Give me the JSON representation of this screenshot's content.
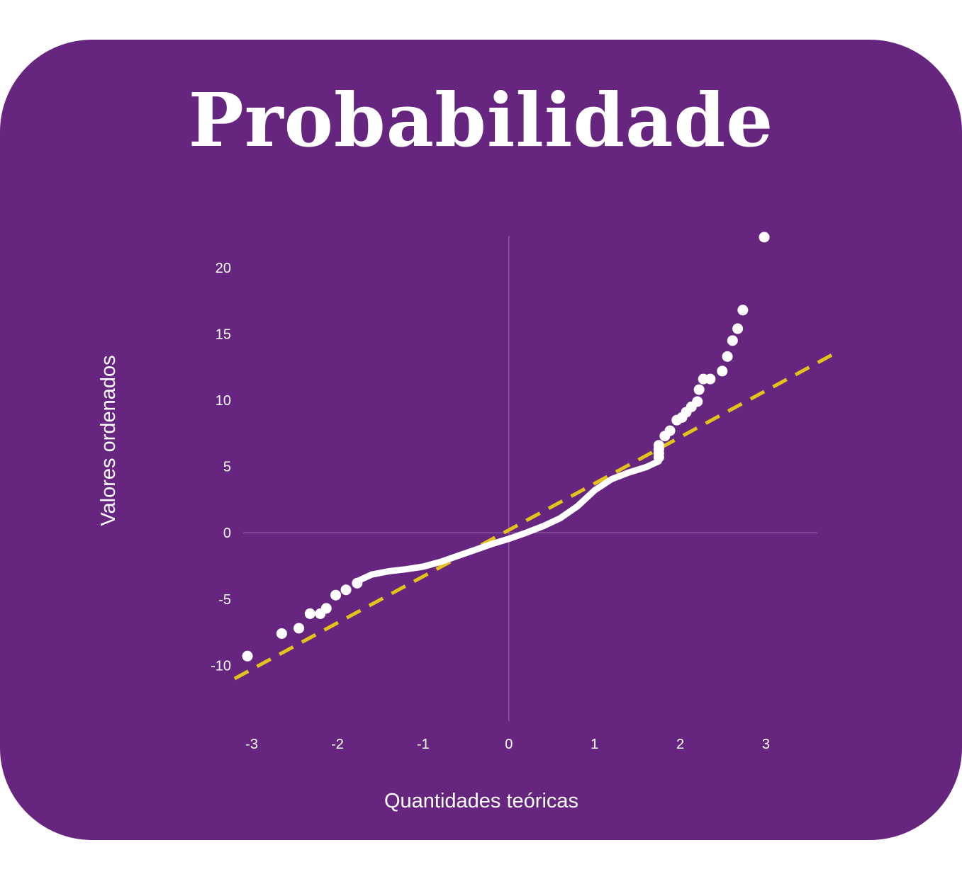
{
  "title": "Probabilidade",
  "colors": {
    "background": "#66267f",
    "points": "#ffffff",
    "reference_line": "#e3c21a",
    "zero_axes": "#8a57a0"
  },
  "chart_data": {
    "type": "scatter",
    "title": "Probabilidade",
    "xlabel": "Quantidades teóricas",
    "ylabel": "Valores ordenados",
    "xlim": [
      -3.1,
      3.6
    ],
    "ylim": [
      -14.2,
      22.4
    ],
    "x_ticks": [
      "-3",
      "-2",
      "-1",
      "0",
      "1",
      "2",
      "3"
    ],
    "y_ticks": [
      "20",
      "15",
      "10",
      "5",
      "0",
      "-5",
      "-10"
    ],
    "grid": false,
    "zero_lines": true,
    "reference_line": {
      "style": "dashed",
      "points": [
        [
          -3.2,
          -11.0
        ],
        [
          3.85,
          13.7
        ]
      ]
    },
    "curve": {
      "description": "dense band of ordered sample values",
      "x": [
        -1.75,
        -1.6,
        -1.4,
        -1.2,
        -1.0,
        -0.8,
        -0.6,
        -0.4,
        -0.2,
        0.0,
        0.2,
        0.4,
        0.6,
        0.8,
        1.0,
        1.2,
        1.4,
        1.6,
        1.75
      ],
      "y": [
        -3.6,
        -3.15,
        -2.9,
        -2.75,
        -2.55,
        -2.2,
        -1.75,
        -1.3,
        -0.85,
        -0.45,
        0.0,
        0.5,
        1.1,
        2.0,
        3.2,
        4.05,
        4.55,
        4.95,
        5.4
      ]
    },
    "points": {
      "x": [
        -3.05,
        -2.65,
        -2.45,
        -2.32,
        -2.2,
        -2.13,
        -2.02,
        -1.9,
        -1.77,
        1.75,
        1.75,
        1.75,
        1.75,
        1.82,
        1.88,
        1.96,
        2.02,
        2.07,
        2.13,
        2.2,
        2.22,
        2.27,
        2.35,
        2.49,
        2.55,
        2.61,
        2.67,
        2.73,
        2.98
      ],
      "y": [
        -9.3,
        -7.6,
        -7.2,
        -6.1,
        -6.1,
        -5.7,
        -4.7,
        -4.3,
        -3.8,
        5.7,
        6.0,
        6.3,
        6.6,
        7.3,
        7.7,
        8.5,
        8.7,
        9.1,
        9.5,
        9.9,
        10.8,
        11.6,
        11.6,
        12.2,
        13.3,
        14.5,
        15.4,
        16.8,
        22.3
      ]
    }
  }
}
